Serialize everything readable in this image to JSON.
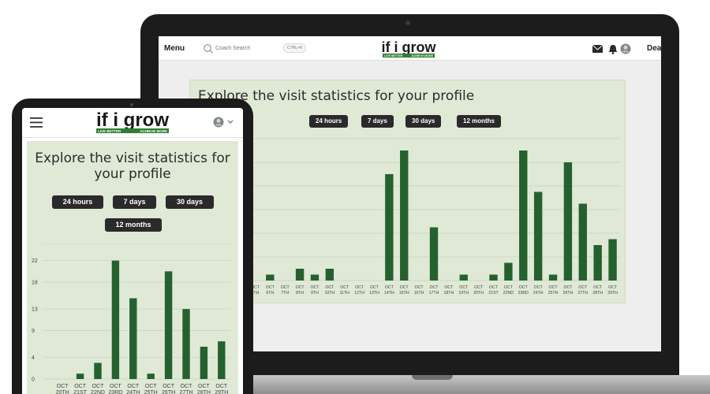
{
  "desktop": {
    "header": {
      "menu_label": "Menu",
      "search_placeholder": "Coach Search",
      "shortcut": "CTRL+K",
      "username": "Dea"
    },
    "panel": {
      "title": "Explore the visit statistics for your profile",
      "filters": [
        "24 hours",
        "7 days",
        "30 days",
        "12 months"
      ]
    }
  },
  "tablet": {
    "panel": {
      "title_line1": "Explore the visit statistics for",
      "title_line2": "your profile",
      "filters": [
        "24 hours",
        "7 days",
        "30 days",
        "12 months"
      ]
    }
  },
  "logo": {
    "main": "if i grow",
    "tag_left": "LIVE BETTER",
    "tag_right": "ACHIEVE MORE"
  },
  "colors": {
    "bar": "#24612f",
    "panel_bg": "#dfe9d6",
    "button_bg": "#2a2a2a"
  },
  "chart_data": [
    {
      "id": "desktop",
      "type": "bar",
      "categories": [
        "OCT 5TH",
        "OCT 6TH",
        "OCT 7TH",
        "OCT 8TH",
        "OCT 9TH",
        "OCT 10TH",
        "OCT 11TH",
        "OCT 12TH",
        "OCT 13TH",
        "OCT 14TH",
        "OCT 15TH",
        "OCT 16TH",
        "OCT 17TH",
        "OCT 18TH",
        "OCT 19TH",
        "OCT 20TH",
        "OCT 21ST",
        "OCT 22ND",
        "OCT 23RD",
        "OCT 24TH",
        "OCT 25TH",
        "OCT 26TH",
        "OCT 27TH",
        "OCT 28TH",
        "OCT 29TH"
      ],
      "values": [
        0,
        1,
        0,
        2,
        1,
        2,
        0,
        0,
        0,
        18,
        22,
        0,
        9,
        0,
        1,
        0,
        1,
        3,
        22,
        15,
        1,
        20,
        13,
        6,
        7
      ],
      "ylim": [
        0,
        24
      ]
    },
    {
      "id": "tablet",
      "type": "bar",
      "categories": [
        "OCT 20TH",
        "OCT 21ST",
        "OCT 22ND",
        "OCT 23RD",
        "OCT 24TH",
        "OCT 25TH",
        "OCT 26TH",
        "OCT 27TH",
        "OCT 28TH",
        "OCT 29TH"
      ],
      "values": [
        0,
        1,
        3,
        22,
        15,
        1,
        20,
        13,
        6,
        7
      ],
      "yticks": [
        0,
        4,
        9,
        13,
        18,
        22
      ],
      "ylim": [
        0,
        24
      ]
    }
  ]
}
